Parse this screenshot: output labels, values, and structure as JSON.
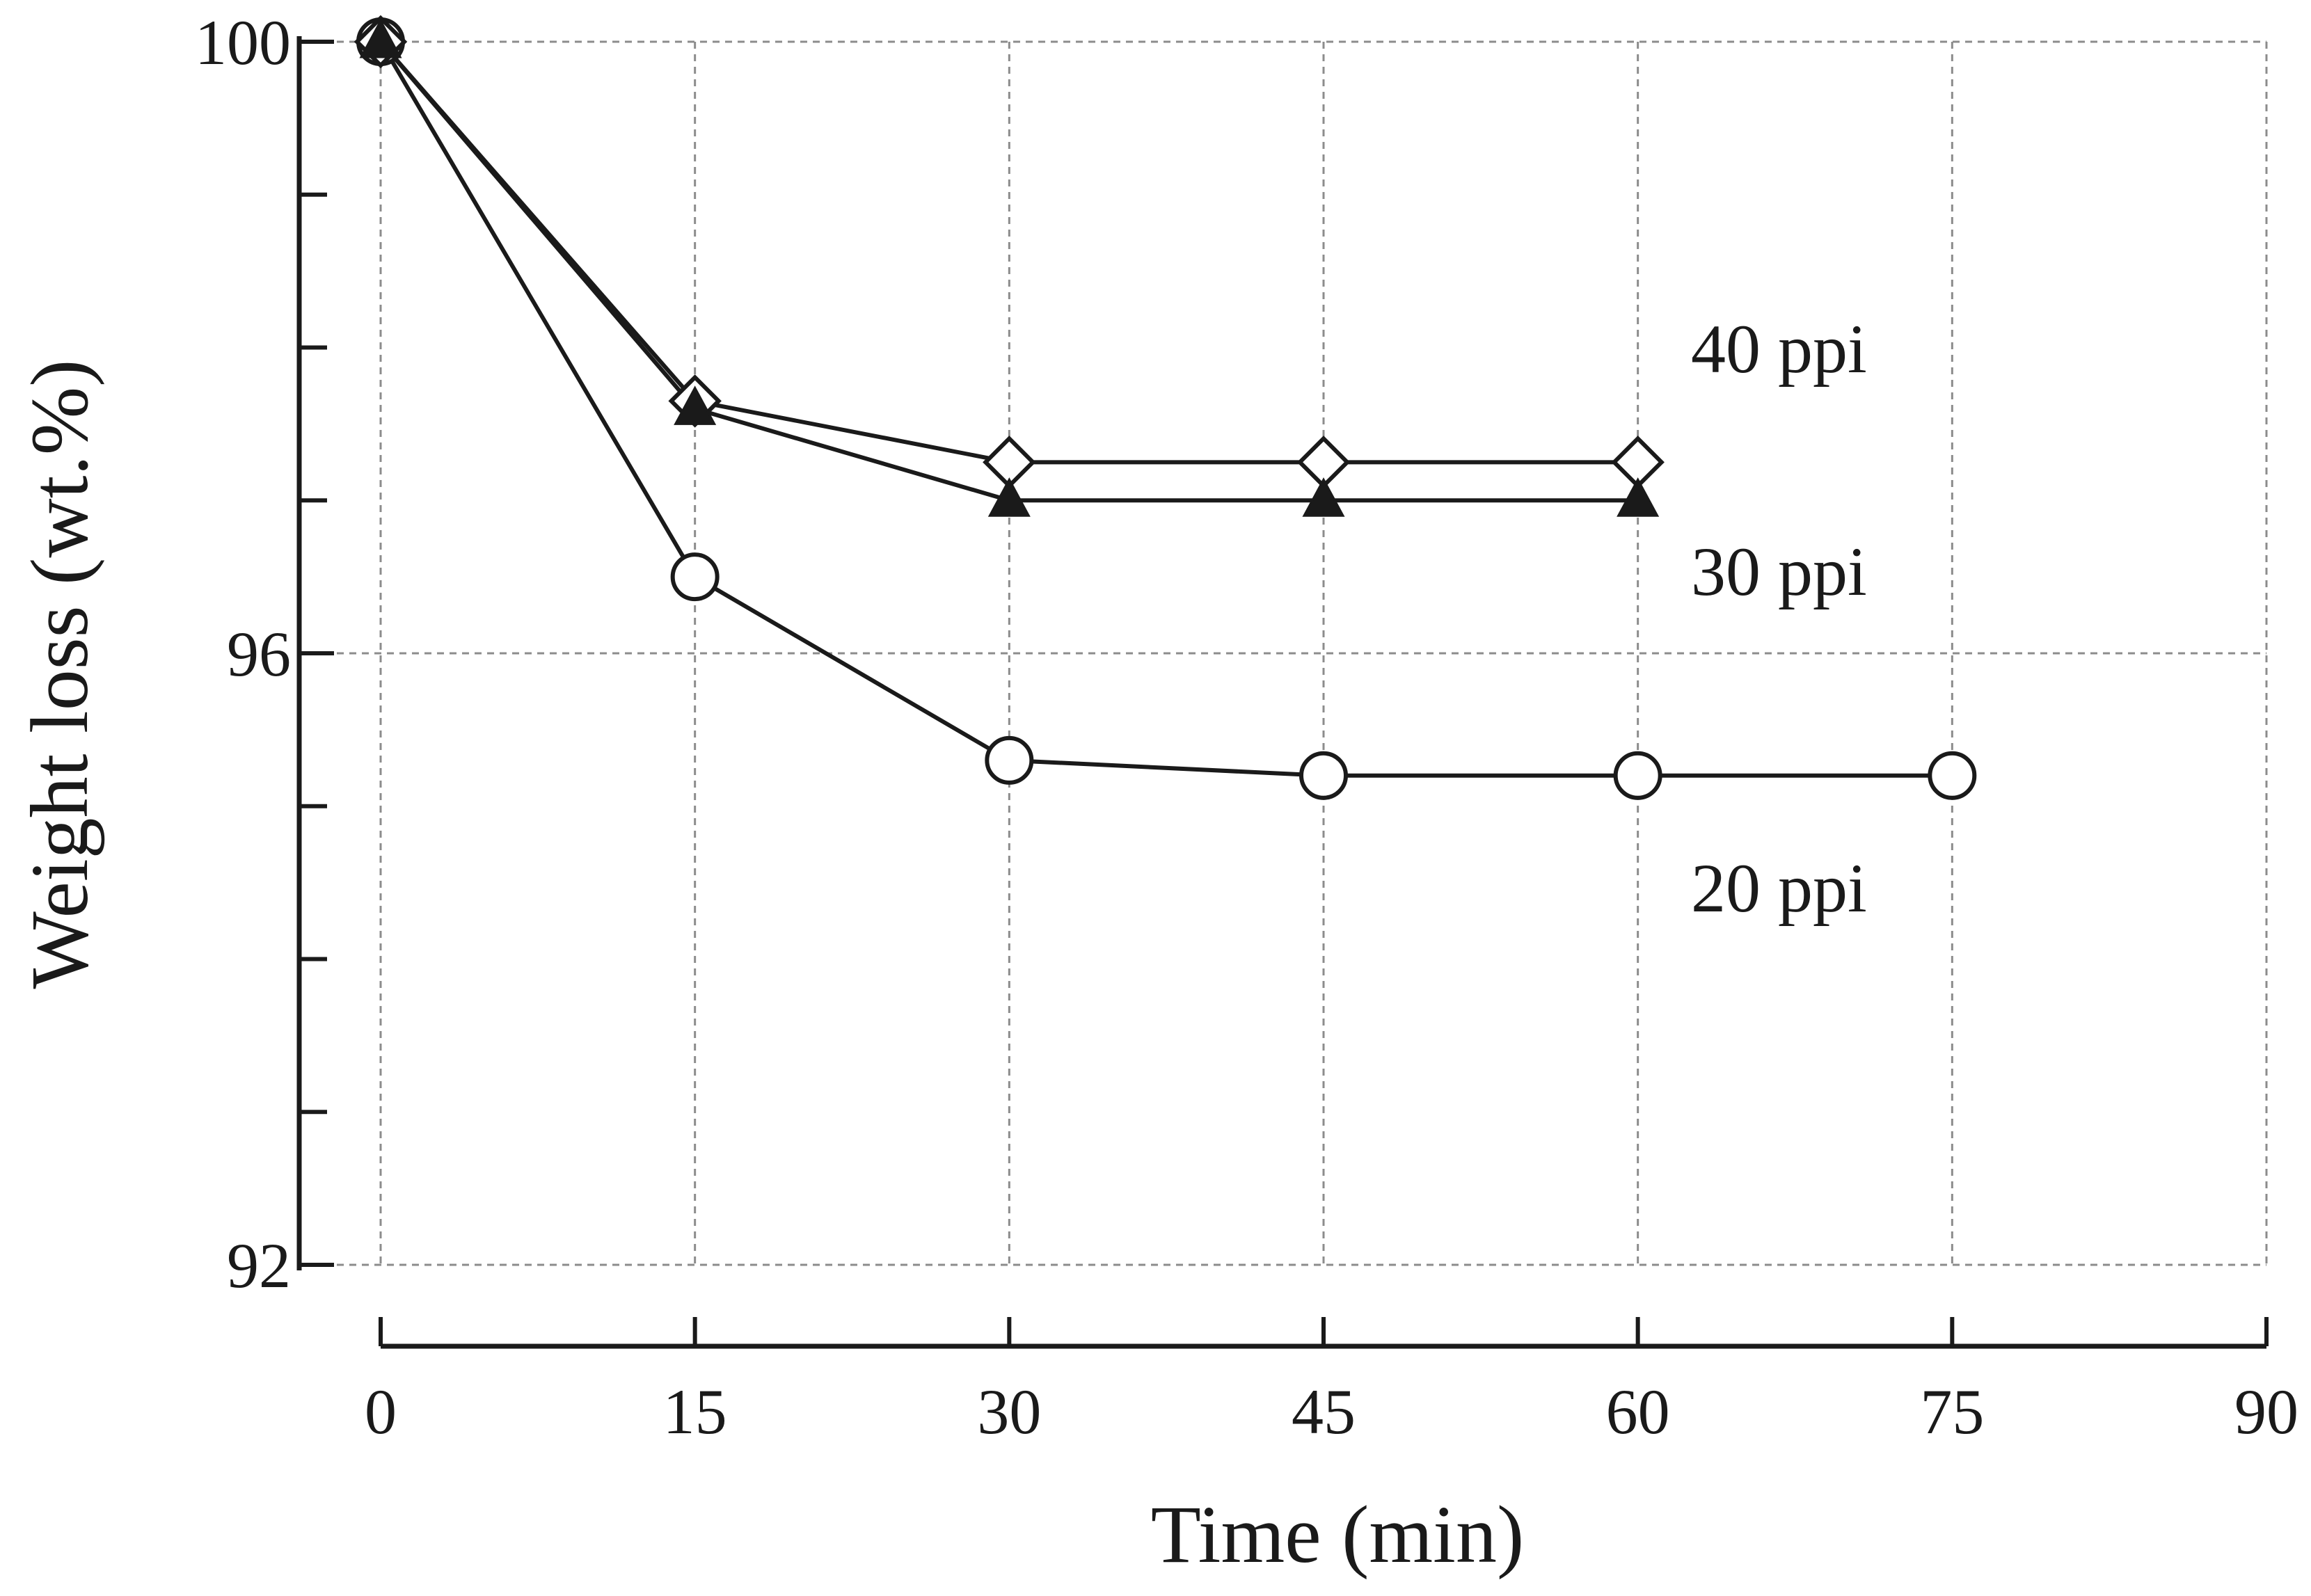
{
  "chart_data": {
    "type": "line",
    "title": "",
    "xlabel": "Time (min)",
    "ylabel": "Weight loss (wt.%)",
    "xlim": [
      0,
      90
    ],
    "ylim": [
      92,
      100
    ],
    "x_ticks": [
      0,
      15,
      30,
      45,
      60,
      75,
      90
    ],
    "y_tick_labels": [
      100,
      96,
      92
    ],
    "y_minor_ticks": [
      100,
      99,
      98,
      97,
      96,
      95,
      94,
      93,
      92
    ],
    "grid": true,
    "series": [
      {
        "name": "40 ppi",
        "marker": "diamond-open",
        "x": [
          0,
          15,
          30,
          45,
          60
        ],
        "y": [
          100,
          97.65,
          97.25,
          97.25,
          97.25
        ]
      },
      {
        "name": "30 ppi",
        "marker": "triangle-filled",
        "x": [
          0,
          15,
          30,
          45,
          60
        ],
        "y": [
          100,
          97.6,
          97.0,
          97.0,
          97.0
        ]
      },
      {
        "name": "20 ppi",
        "marker": "circle-open",
        "x": [
          0,
          15,
          30,
          45,
          60,
          75
        ],
        "y": [
          100,
          96.5,
          95.3,
          95.2,
          95.2,
          95.2
        ]
      }
    ]
  }
}
